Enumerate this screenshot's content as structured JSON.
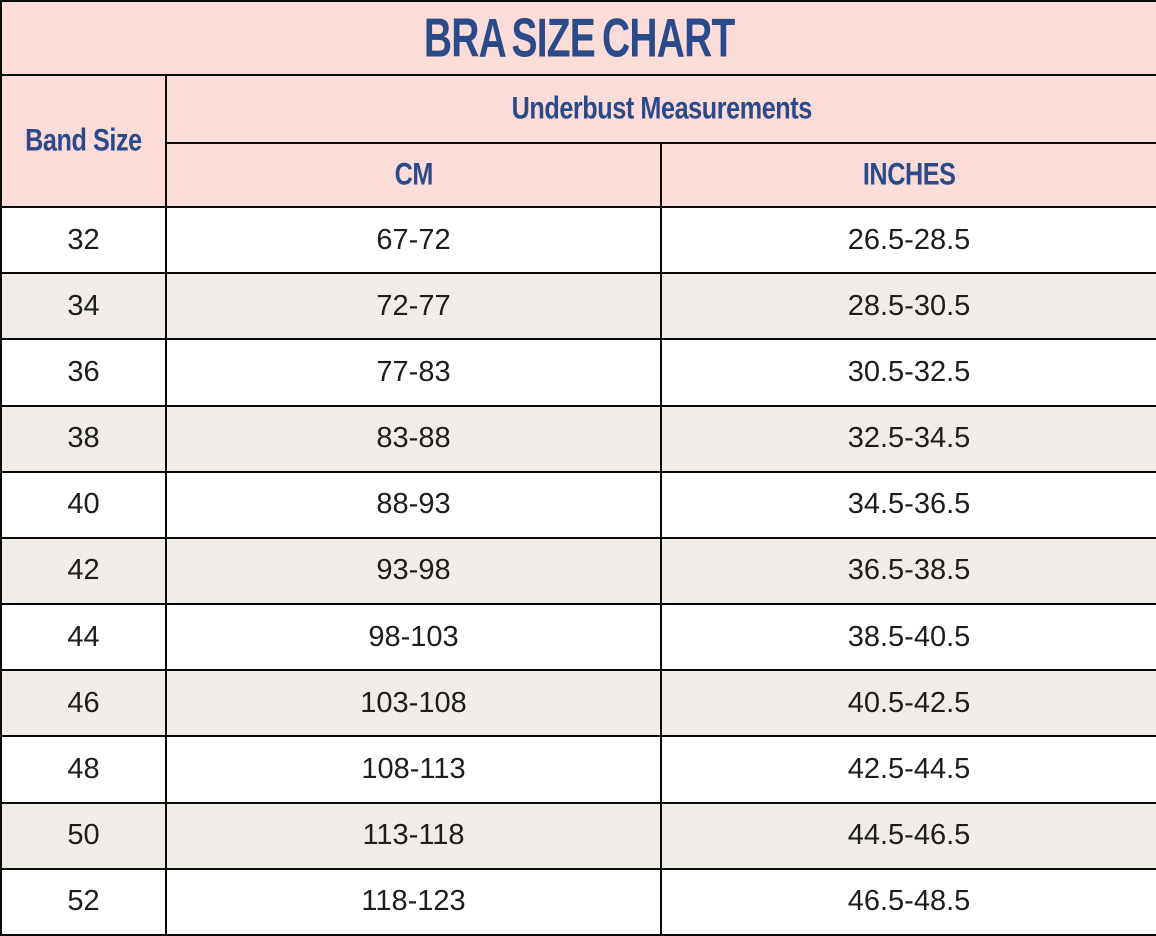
{
  "title": "BRA SIZE CHART",
  "colors": {
    "header_bg": "#fcdcd8",
    "heading_text": "#2b4a8a",
    "row_bg": "#ffffff",
    "alt_row_bg": "#f0ede9",
    "body_text": "#1d1d1b",
    "border": "#0a0a0a"
  },
  "headers": {
    "band": "Band Size",
    "underbust_group": "Underbust Measurements",
    "cm": "CM",
    "inches": "INCHES"
  },
  "chart_data": {
    "type": "table",
    "title": "BRA SIZE CHART",
    "columns": [
      "Band Size",
      "CM",
      "INCHES"
    ],
    "column_group": {
      "label": "Underbust Measurements",
      "spans": [
        "CM",
        "INCHES"
      ]
    },
    "rows": [
      {
        "band": "32",
        "cm": "67-72",
        "inches": "26.5-28.5"
      },
      {
        "band": "34",
        "cm": "72-77",
        "inches": "28.5-30.5"
      },
      {
        "band": "36",
        "cm": "77-83",
        "inches": "30.5-32.5"
      },
      {
        "band": "38",
        "cm": "83-88",
        "inches": "32.5-34.5"
      },
      {
        "band": "40",
        "cm": "88-93",
        "inches": "34.5-36.5"
      },
      {
        "band": "42",
        "cm": "93-98",
        "inches": "36.5-38.5"
      },
      {
        "band": "44",
        "cm": "98-103",
        "inches": "38.5-40.5"
      },
      {
        "band": "46",
        "cm": "103-108",
        "inches": "40.5-42.5"
      },
      {
        "band": "48",
        "cm": "108-113",
        "inches": "42.5-44.5"
      },
      {
        "band": "50",
        "cm": "113-118",
        "inches": "44.5-46.5"
      },
      {
        "band": "52",
        "cm": "118-123",
        "inches": "46.5-48.5"
      }
    ]
  }
}
